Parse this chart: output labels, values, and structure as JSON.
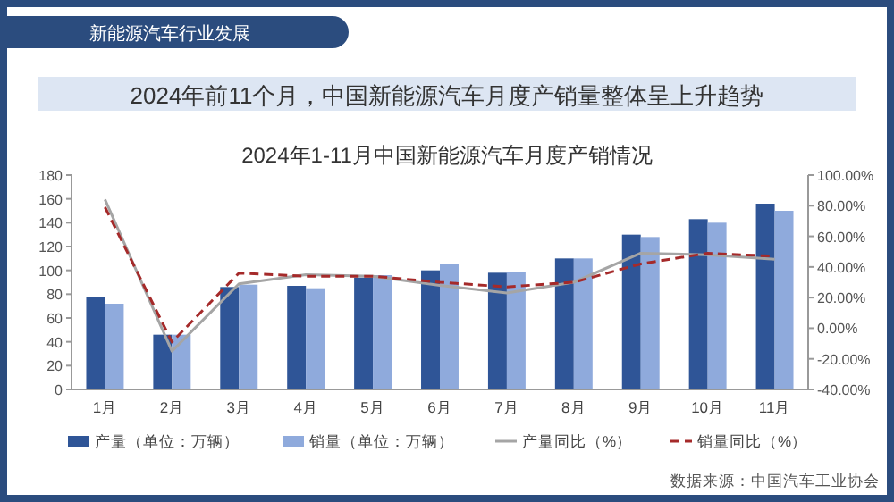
{
  "chart_data": {
    "type": "bar",
    "title": "2024年1-11月中国新能源汽车月度产销情况",
    "subtitle": "2024年前11个月，中国新能源汽车月度产销量整体呈上升趋势",
    "annotations": [
      "新能源汽车行业发展",
      "数据来源：中国汽车工业协会"
    ],
    "categories": [
      "1月",
      "2月",
      "3月",
      "4月",
      "5月",
      "6月",
      "7月",
      "8月",
      "9月",
      "10月",
      "11月"
    ],
    "series": [
      {
        "name": "产量（单位：万辆）",
        "color": "#2f5597",
        "values": [
          78,
          46,
          86,
          87,
          94,
          100,
          98,
          110,
          130,
          143,
          156
        ]
      },
      {
        "name": "销量（单位：万辆）",
        "color": "#8faadc",
        "values": [
          72,
          46,
          88,
          85,
          96,
          105,
          99,
          110,
          128,
          140,
          150
        ]
      },
      {
        "name": "产量同比（%）",
        "type": "line",
        "axis": "y2",
        "color": "#a5a5a5",
        "line_style": "solid",
        "values": [
          84,
          -15,
          29,
          35,
          34,
          28,
          23,
          30,
          49,
          48,
          45
        ]
      },
      {
        "name": "销量同比（%）",
        "type": "line",
        "axis": "y2",
        "color": "#a52a2a",
        "line_style": "dashed",
        "values": [
          79,
          -9,
          36,
          34,
          34,
          30,
          27,
          30,
          42,
          49,
          47
        ]
      }
    ],
    "ylim": [
      0,
      180
    ],
    "yticks": [
      0,
      20,
      40,
      60,
      80,
      100,
      120,
      140,
      160,
      180
    ],
    "y2lim": [
      -40,
      100
    ],
    "y2ticks": [
      {
        "value": -40,
        "label": "-40.00%"
      },
      {
        "value": -20,
        "label": "-20.00%"
      },
      {
        "value": 0,
        "label": "0.00%"
      },
      {
        "value": 20,
        "label": "20.00%"
      },
      {
        "value": 40,
        "label": "40.00%"
      },
      {
        "value": 60,
        "label": "60.00%"
      },
      {
        "value": 80,
        "label": "80.00%"
      },
      {
        "value": 100,
        "label": "100.00%"
      }
    ],
    "grid": false,
    "legend": "bottom",
    "marker": "none"
  }
}
